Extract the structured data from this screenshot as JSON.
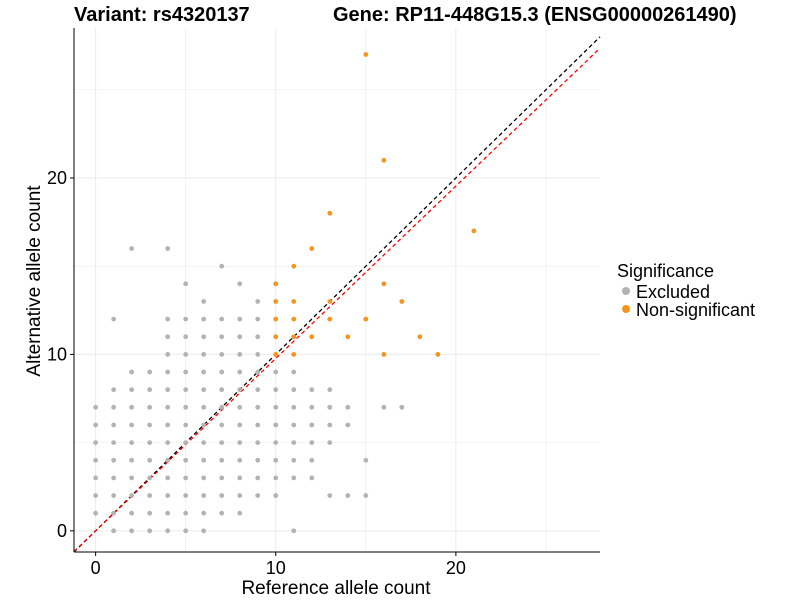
{
  "title_left": "Variant: rs4320137",
  "title_right": "Gene: RP11-448G15.3 (ENSG00000261490)",
  "colors": {
    "excluded": "#b3b3b3",
    "non_significant": "#f7941d",
    "identity_line": "#000000",
    "fit_line": "#ff0000",
    "grid": "#ebebeb"
  },
  "chart_data": {
    "type": "scatter",
    "xlabel": "Reference allele count",
    "ylabel": "Alternative allele count",
    "xlim": [
      -1.2,
      28
    ],
    "ylim": [
      -1.2,
      28.5
    ],
    "x_ticks": [
      0,
      10,
      20
    ],
    "y_ticks": [
      0,
      10,
      20
    ],
    "grid": true,
    "legend": {
      "title": "Significance",
      "placement": "right",
      "entries": [
        "Excluded",
        "Non-significant"
      ]
    },
    "lines": [
      {
        "kind": "identity",
        "slope": 1,
        "intercept": 0,
        "style": "dashed",
        "color": "#000000"
      },
      {
        "kind": "fit",
        "slope": 0.977,
        "intercept": 0,
        "style": "dashed",
        "color": "#ff0000"
      }
    ],
    "series": [
      {
        "name": "Excluded",
        "color": "#b3b3b3",
        "points": [
          [
            0,
            1
          ],
          [
            0,
            2
          ],
          [
            0,
            3
          ],
          [
            0,
            4
          ],
          [
            0,
            5
          ],
          [
            0,
            6
          ],
          [
            0,
            7
          ],
          [
            1,
            0
          ],
          [
            1,
            1
          ],
          [
            1,
            2
          ],
          [
            1,
            3
          ],
          [
            1,
            4
          ],
          [
            1,
            5
          ],
          [
            1,
            6
          ],
          [
            1,
            7
          ],
          [
            1,
            8
          ],
          [
            1,
            12
          ],
          [
            2,
            0
          ],
          [
            2,
            1
          ],
          [
            2,
            2
          ],
          [
            2,
            3
          ],
          [
            2,
            4
          ],
          [
            2,
            5
          ],
          [
            2,
            6
          ],
          [
            2,
            7
          ],
          [
            2,
            8
          ],
          [
            2,
            9
          ],
          [
            2,
            16
          ],
          [
            3,
            0
          ],
          [
            3,
            1
          ],
          [
            3,
            2
          ],
          [
            3,
            3
          ],
          [
            3,
            4
          ],
          [
            3,
            5
          ],
          [
            3,
            6
          ],
          [
            3,
            7
          ],
          [
            3,
            8
          ],
          [
            3,
            9
          ],
          [
            4,
            0
          ],
          [
            4,
            1
          ],
          [
            4,
            2
          ],
          [
            4,
            3
          ],
          [
            4,
            4
          ],
          [
            4,
            5
          ],
          [
            4,
            6
          ],
          [
            4,
            7
          ],
          [
            4,
            8
          ],
          [
            4,
            9
          ],
          [
            4,
            10
          ],
          [
            4,
            11
          ],
          [
            4,
            12
          ],
          [
            4,
            16
          ],
          [
            5,
            0
          ],
          [
            5,
            1
          ],
          [
            5,
            2
          ],
          [
            5,
            3
          ],
          [
            5,
            4
          ],
          [
            5,
            5
          ],
          [
            5,
            6
          ],
          [
            5,
            7
          ],
          [
            5,
            8
          ],
          [
            5,
            9
          ],
          [
            5,
            10
          ],
          [
            5,
            11
          ],
          [
            5,
            12
          ],
          [
            5,
            14
          ],
          [
            6,
            0
          ],
          [
            6,
            1
          ],
          [
            6,
            2
          ],
          [
            6,
            3
          ],
          [
            6,
            4
          ],
          [
            6,
            5
          ],
          [
            6,
            6
          ],
          [
            6,
            7
          ],
          [
            6,
            8
          ],
          [
            6,
            9
          ],
          [
            6,
            10
          ],
          [
            6,
            11
          ],
          [
            6,
            12
          ],
          [
            6,
            13
          ],
          [
            7,
            1
          ],
          [
            7,
            2
          ],
          [
            7,
            3
          ],
          [
            7,
            4
          ],
          [
            7,
            5
          ],
          [
            7,
            6
          ],
          [
            7,
            7
          ],
          [
            7,
            8
          ],
          [
            7,
            9
          ],
          [
            7,
            10
          ],
          [
            7,
            11
          ],
          [
            7,
            12
          ],
          [
            7,
            15
          ],
          [
            8,
            1
          ],
          [
            8,
            2
          ],
          [
            8,
            3
          ],
          [
            8,
            4
          ],
          [
            8,
            5
          ],
          [
            8,
            6
          ],
          [
            8,
            7
          ],
          [
            8,
            8
          ],
          [
            8,
            9
          ],
          [
            8,
            10
          ],
          [
            8,
            11
          ],
          [
            8,
            12
          ],
          [
            8,
            14
          ],
          [
            9,
            2
          ],
          [
            9,
            3
          ],
          [
            9,
            4
          ],
          [
            9,
            5
          ],
          [
            9,
            6
          ],
          [
            9,
            7
          ],
          [
            9,
            8
          ],
          [
            9,
            9
          ],
          [
            9,
            10
          ],
          [
            9,
            11
          ],
          [
            9,
            12
          ],
          [
            9,
            13
          ],
          [
            10,
            2
          ],
          [
            10,
            3
          ],
          [
            10,
            4
          ],
          [
            10,
            5
          ],
          [
            10,
            6
          ],
          [
            10,
            7
          ],
          [
            10,
            8
          ],
          [
            10,
            9
          ],
          [
            11,
            0
          ],
          [
            11,
            3
          ],
          [
            11,
            4
          ],
          [
            11,
            5
          ],
          [
            11,
            6
          ],
          [
            11,
            7
          ],
          [
            11,
            8
          ],
          [
            11,
            9
          ],
          [
            12,
            3
          ],
          [
            12,
            4
          ],
          [
            12,
            5
          ],
          [
            12,
            6
          ],
          [
            12,
            7
          ],
          [
            12,
            8
          ],
          [
            13,
            2
          ],
          [
            13,
            5
          ],
          [
            13,
            6
          ],
          [
            13,
            7
          ],
          [
            13,
            8
          ],
          [
            14,
            2
          ],
          [
            14,
            6
          ],
          [
            14,
            7
          ],
          [
            15,
            2
          ],
          [
            15,
            4
          ],
          [
            16,
            7
          ],
          [
            17,
            7
          ]
        ]
      },
      {
        "name": "Non-significant",
        "color": "#f7941d",
        "points": [
          [
            10,
            10
          ],
          [
            10,
            11
          ],
          [
            10,
            12
          ],
          [
            10,
            13
          ],
          [
            10,
            14
          ],
          [
            11,
            10
          ],
          [
            11,
            11
          ],
          [
            11,
            12
          ],
          [
            11,
            13
          ],
          [
            11,
            15
          ],
          [
            12,
            11
          ],
          [
            12,
            16
          ],
          [
            13,
            12
          ],
          [
            13,
            13
          ],
          [
            13,
            18
          ],
          [
            14,
            11
          ],
          [
            15,
            12
          ],
          [
            15,
            27
          ],
          [
            16,
            10
          ],
          [
            16,
            14
          ],
          [
            16,
            21
          ],
          [
            17,
            13
          ],
          [
            18,
            11
          ],
          [
            19,
            10
          ],
          [
            21,
            17
          ]
        ]
      }
    ]
  }
}
